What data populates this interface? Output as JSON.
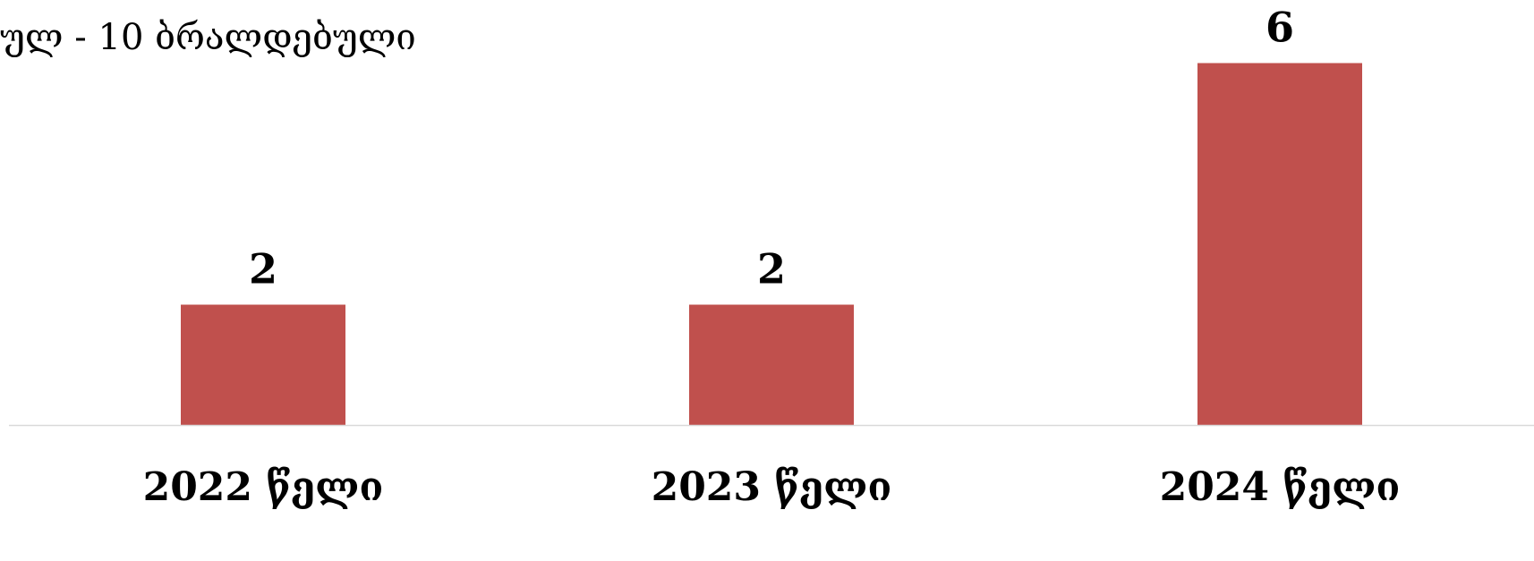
{
  "header": {
    "title_fragment": "ულ - 10 ბრალდებული"
  },
  "chart_data": {
    "type": "bar",
    "categories": [
      "2022 წელი",
      "2023 წელი",
      "2024 წელი"
    ],
    "values": [
      2,
      2,
      6
    ],
    "data_labels": [
      "2",
      "2",
      "6"
    ],
    "ylim": [
      0,
      6.6
    ],
    "grid": false,
    "legend": "none",
    "colors": {
      "bar": "#C0504D",
      "baseline": "#D9D9D9",
      "text": "#000000"
    }
  }
}
